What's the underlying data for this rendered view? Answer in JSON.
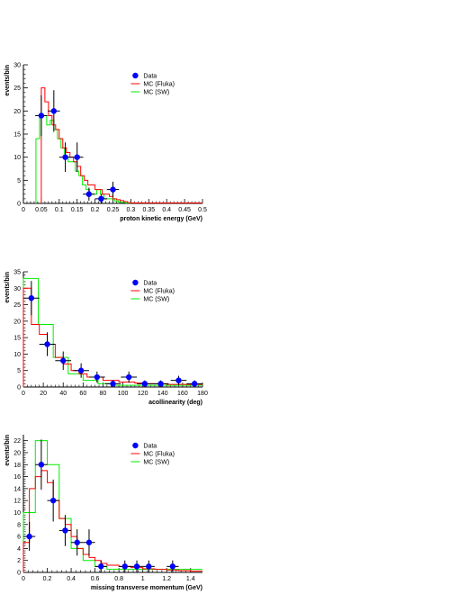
{
  "colors": {
    "data": "#0000ff",
    "fluka": "#ff0000",
    "sw": "#00ee00",
    "axis": "#000000",
    "errorbar": "#000000"
  },
  "legend_labels": [
    "Data",
    "MC (Fluka)",
    "MC (SW)"
  ],
  "chart_data": [
    {
      "type": "histogram",
      "xlabel": "proton kinetic energy (GeV)",
      "ylabel": "events/bin",
      "xlim": [
        0,
        0.5
      ],
      "ylim": [
        0,
        30
      ],
      "xticks": [
        0,
        0.05,
        0.1,
        0.15,
        0.2,
        0.25,
        0.3,
        0.35,
        0.4,
        0.45,
        0.5
      ],
      "xtick_labels": [
        "0",
        "0.05",
        "0.1",
        "0.15",
        "0.2",
        "0.25",
        "0.3",
        "0.35",
        "0.4",
        "0.45",
        "0.5"
      ],
      "yticks": [
        0,
        5,
        10,
        15,
        20,
        25,
        30
      ],
      "legend": "top-right",
      "data_points": [
        {
          "x": 0.05,
          "y": 19,
          "xerr": 0.017,
          "yerr": 4.4
        },
        {
          "x": 0.085,
          "y": 20,
          "xerr": 0.017,
          "yerr": 4.5
        },
        {
          "x": 0.117,
          "y": 10,
          "xerr": 0.017,
          "yerr": 3.2
        },
        {
          "x": 0.15,
          "y": 10,
          "xerr": 0.017,
          "yerr": 3.2
        },
        {
          "x": 0.183,
          "y": 2,
          "xerr": 0.017,
          "yerr": 1.4
        },
        {
          "x": 0.217,
          "y": 1,
          "xerr": 0.017,
          "yerr": 1.0
        },
        {
          "x": 0.25,
          "y": 3,
          "xerr": 0.017,
          "yerr": 1.7
        }
      ],
      "fluka": {
        "edges": [
          0.05,
          0.06,
          0.07,
          0.08,
          0.09,
          0.1,
          0.11,
          0.12,
          0.13,
          0.14,
          0.15,
          0.16,
          0.17,
          0.18,
          0.19,
          0.2,
          0.21,
          0.22,
          0.23,
          0.24,
          0.25,
          0.26,
          0.27,
          0.28,
          0.29,
          0.3,
          0.5
        ],
        "values": [
          25,
          22,
          19,
          17,
          16,
          14,
          12,
          11,
          10,
          9,
          8,
          6,
          5,
          4,
          4,
          3,
          3,
          2,
          2,
          1.5,
          1,
          0.8,
          0.6,
          0.4,
          0.2,
          0.1
        ]
      },
      "sw": {
        "edges": [
          0.035,
          0.045,
          0.055,
          0.065,
          0.075,
          0.085,
          0.095,
          0.105,
          0.115,
          0.125,
          0.135,
          0.145,
          0.155,
          0.165,
          0.175,
          0.185,
          0.195,
          0.205,
          0.215,
          0.225,
          0.235,
          0.245,
          0.255,
          0.265,
          0.275,
          0.285,
          0.5
        ],
        "values": [
          14,
          19,
          19,
          17,
          18,
          16,
          14,
          12,
          10,
          9,
          9,
          7,
          6,
          4,
          3,
          2,
          2,
          3,
          2,
          1,
          1,
          1,
          0.5,
          0.3,
          0.2,
          0.1
        ]
      }
    },
    {
      "type": "histogram",
      "xlabel": "acollinearity (deg)",
      "ylabel": "events/bin",
      "xlim": [
        0,
        180
      ],
      "ylim": [
        0,
        35
      ],
      "xticks": [
        0,
        20,
        40,
        60,
        80,
        100,
        120,
        140,
        160,
        180
      ],
      "xtick_labels": [
        "0",
        "20",
        "40",
        "60",
        "80",
        "100",
        "120",
        "140",
        "160",
        "180"
      ],
      "yticks": [
        0,
        5,
        10,
        15,
        20,
        25,
        30,
        35
      ],
      "legend": "top-right",
      "data_points": [
        {
          "x": 8,
          "y": 27,
          "xerr": 8,
          "yerr": 5.2
        },
        {
          "x": 24,
          "y": 13,
          "xerr": 8,
          "yerr": 3.6
        },
        {
          "x": 40,
          "y": 8,
          "xerr": 8,
          "yerr": 2.8
        },
        {
          "x": 58,
          "y": 5,
          "xerr": 8,
          "yerr": 2.2
        },
        {
          "x": 74,
          "y": 3,
          "xerr": 8,
          "yerr": 1.7
        },
        {
          "x": 90,
          "y": 1,
          "xerr": 8,
          "yerr": 1.0
        },
        {
          "x": 106,
          "y": 3,
          "xerr": 8,
          "yerr": 1.7
        },
        {
          "x": 122,
          "y": 1,
          "xerr": 8,
          "yerr": 1.0
        },
        {
          "x": 138,
          "y": 1,
          "xerr": 8,
          "yerr": 1.0
        },
        {
          "x": 156,
          "y": 2,
          "xerr": 8,
          "yerr": 1.4
        },
        {
          "x": 172,
          "y": 1,
          "xerr": 8,
          "yerr": 1.0
        }
      ],
      "fluka": {
        "edges": [
          0,
          8,
          16,
          24,
          32,
          40,
          48,
          56,
          64,
          72,
          80,
          88,
          96,
          104,
          112,
          120,
          128,
          136,
          144,
          152,
          160,
          168,
          176,
          180
        ],
        "values": [
          30,
          19,
          16,
          13,
          9,
          7,
          5,
          4,
          3,
          3,
          2,
          2,
          1.5,
          1.5,
          1.2,
          1,
          1,
          1,
          0.8,
          0.8,
          0.8,
          0.8,
          0.8
        ]
      },
      "sw": {
        "edges": [
          0,
          15,
          30,
          45,
          60,
          75,
          90,
          180
        ],
        "values": [
          33,
          19,
          9,
          4,
          2,
          1,
          0.5
        ]
      }
    },
    {
      "type": "histogram",
      "xlabel": "missing transverse momentum (GeV)",
      "ylabel": "events/bin",
      "xlim": [
        0,
        1.5
      ],
      "ylim": [
        0,
        23
      ],
      "xticks": [
        0,
        0.2,
        0.4,
        0.6,
        0.8,
        1.0,
        1.2,
        1.4
      ],
      "xtick_labels": [
        "0",
        "0.2",
        "0.4",
        "0.6",
        "0.8",
        "1",
        "1.2",
        "1.4"
      ],
      "yticks": [
        0,
        2,
        4,
        6,
        8,
        10,
        12,
        14,
        16,
        18,
        20,
        22
      ],
      "legend": "top-right",
      "data_points": [
        {
          "x": 0.05,
          "y": 6,
          "xerr": 0.05,
          "yerr": 2.4
        },
        {
          "x": 0.15,
          "y": 18,
          "xerr": 0.05,
          "yerr": 4.2
        },
        {
          "x": 0.25,
          "y": 12,
          "xerr": 0.05,
          "yerr": 3.5
        },
        {
          "x": 0.35,
          "y": 7,
          "xerr": 0.05,
          "yerr": 2.6
        },
        {
          "x": 0.45,
          "y": 5,
          "xerr": 0.05,
          "yerr": 2.2
        },
        {
          "x": 0.55,
          "y": 5,
          "xerr": 0.05,
          "yerr": 2.2
        },
        {
          "x": 0.65,
          "y": 1,
          "xerr": 0.05,
          "yerr": 1.0
        },
        {
          "x": 0.85,
          "y": 1,
          "xerr": 0.05,
          "yerr": 1.0
        },
        {
          "x": 0.95,
          "y": 1,
          "xerr": 0.05,
          "yerr": 1.0
        },
        {
          "x": 1.05,
          "y": 1,
          "xerr": 0.05,
          "yerr": 1.0
        },
        {
          "x": 1.25,
          "y": 1,
          "xerr": 0.05,
          "yerr": 1.0
        }
      ],
      "fluka": {
        "edges": [
          0,
          0.05,
          0.1,
          0.15,
          0.2,
          0.25,
          0.3,
          0.35,
          0.4,
          0.45,
          0.5,
          0.55,
          0.6,
          0.65,
          0.7,
          0.8,
          0.9,
          1.0,
          1.1,
          1.2,
          1.3,
          1.4,
          1.5
        ],
        "values": [
          5,
          14,
          16,
          17,
          15,
          12,
          9,
          8,
          6,
          4,
          3,
          2.5,
          2,
          1.5,
          1.2,
          1,
          0.8,
          0.6,
          0.5,
          0.4,
          0.3,
          0.2
        ]
      },
      "sw": {
        "edges": [
          0,
          0.1,
          0.2,
          0.3,
          0.4,
          0.5,
          0.6,
          0.7,
          1.5
        ],
        "values": [
          10,
          22,
          18,
          9,
          4,
          2,
          1,
          0.5
        ]
      }
    }
  ]
}
